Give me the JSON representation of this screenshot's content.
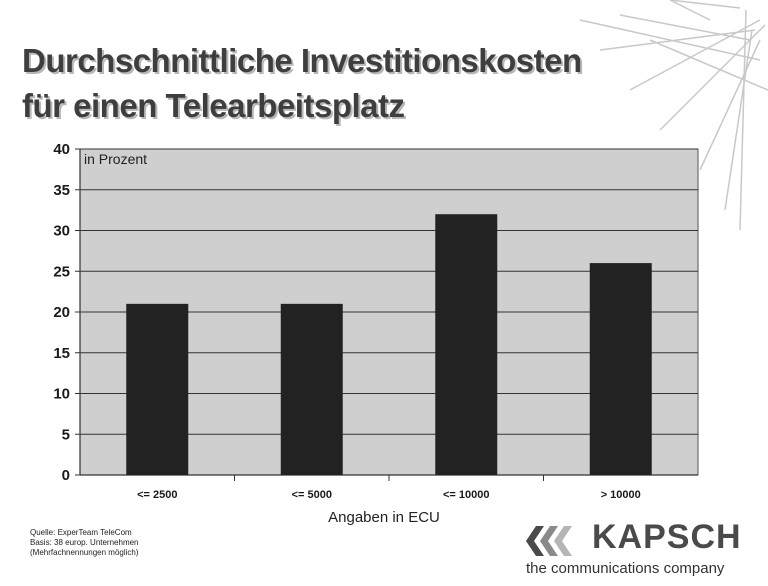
{
  "slide": {
    "title_line1": "Durchschnittliche Investitionskosten",
    "title_line2": "für einen Telearbeitsplatz",
    "source_line1": "Quelle: ExperTeam TeleCom",
    "source_line2": "Basis: 38 europ. Unternehmen",
    "source_line3": "(Mehrfachnennungen möglich)"
  },
  "brand": {
    "name": "KAPSCH",
    "tagline": "the communications company",
    "logo_icon": "triple-chevron-logo-icon"
  },
  "chart_data": {
    "type": "bar",
    "categories": [
      "<= 2500",
      "<= 5000",
      "<= 10000",
      "> 10000"
    ],
    "values": [
      21,
      21,
      32,
      26
    ],
    "title": "",
    "annotation": "in Prozent",
    "xlabel": "Angaben in ECU",
    "ylabel": "",
    "ylim": [
      0,
      40
    ],
    "yticks": [
      0,
      5,
      10,
      15,
      20,
      25,
      30,
      35,
      40
    ],
    "grid": true,
    "bar_color": "#222222",
    "plot_background": "#cfcfcf"
  }
}
